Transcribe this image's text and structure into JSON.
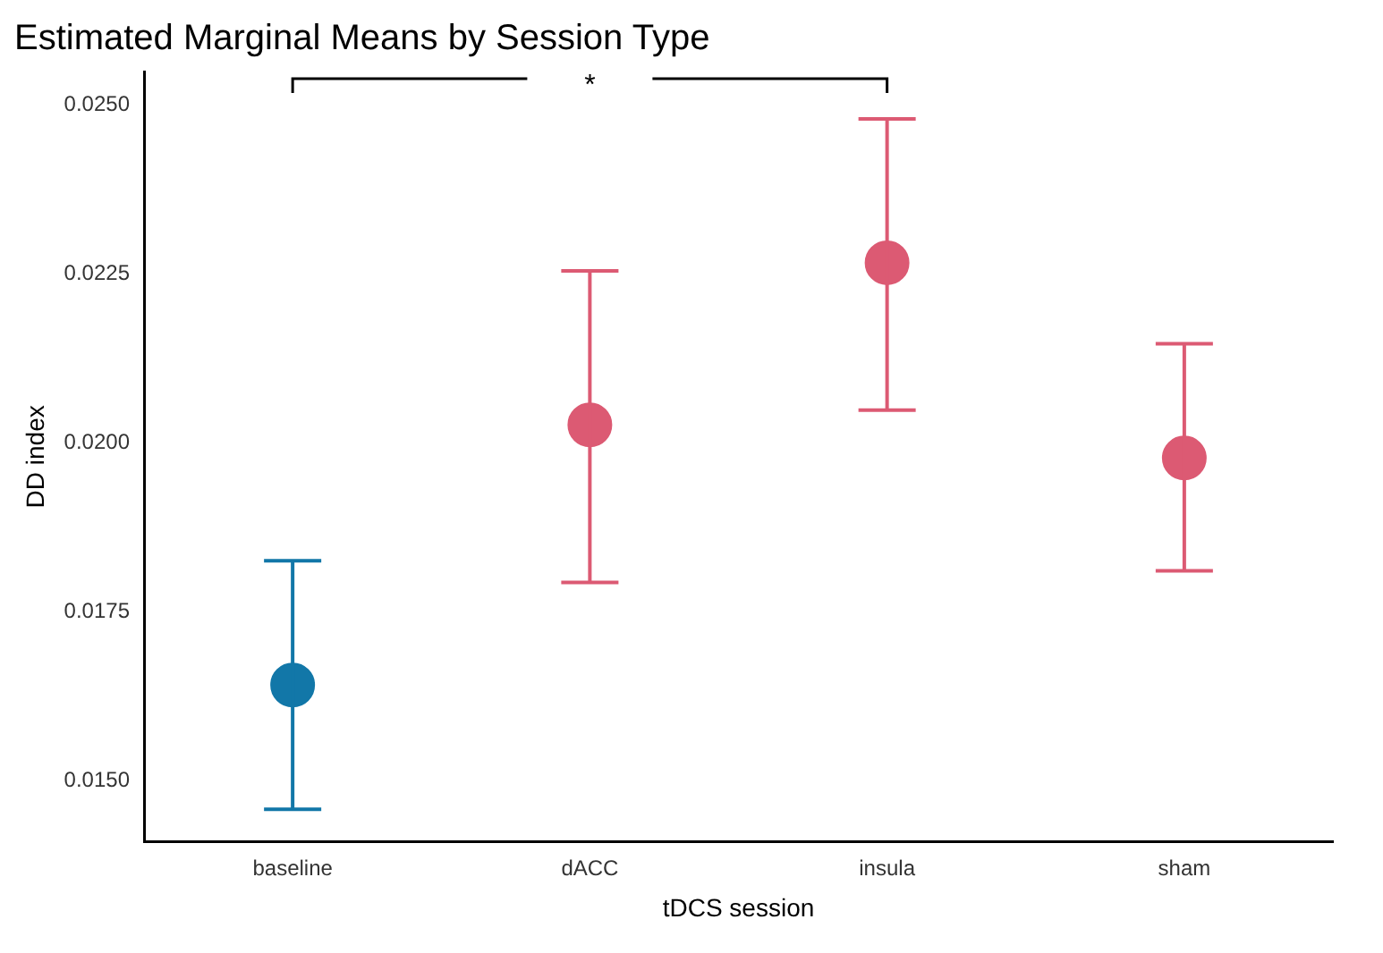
{
  "chart_data": {
    "type": "scatter",
    "title": "Estimated Marginal Means by Session Type",
    "xlabel": "tDCS session",
    "ylabel": "DD index",
    "categories": [
      "baseline",
      "dACC",
      "insula",
      "sham"
    ],
    "values": [
      0.01642,
      0.02027,
      0.02267,
      0.01978
    ],
    "colors": [
      "#1277a8",
      "#dc5a73",
      "#dc5a73",
      "#dc5a73"
    ],
    "errors": [
      [
        0.01458,
        0.01826
      ],
      [
        0.01794,
        0.02255
      ],
      [
        0.02049,
        0.0248
      ],
      [
        0.01811,
        0.02147
      ]
    ],
    "ylim": [
      0.0141,
      0.0255
    ],
    "yticks": [
      {
        "value": 0.015,
        "label": "0.0150"
      },
      {
        "value": 0.0175,
        "label": "0.0175"
      },
      {
        "value": 0.02,
        "label": "0.0200"
      },
      {
        "value": 0.0225,
        "label": "0.0225"
      },
      {
        "value": 0.025,
        "label": "0.0250"
      }
    ],
    "annotations": [
      "*"
    ],
    "grid": false,
    "legend": false,
    "marker": "circle"
  }
}
